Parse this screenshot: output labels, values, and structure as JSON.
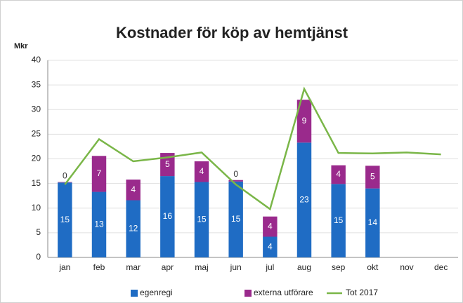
{
  "chart_data": {
    "type": "bar",
    "title": "Kostnader för köp av hemtjänst",
    "y_label": "Mkr",
    "categories": [
      "jan",
      "feb",
      "mar",
      "apr",
      "maj",
      "jun",
      "jul",
      "aug",
      "sep",
      "okt",
      "nov",
      "dec"
    ],
    "series": [
      {
        "name": "egenregi",
        "color": "#1f6cc4",
        "kind": "bar",
        "values": [
          15.2,
          13.3,
          11.6,
          16.5,
          15.3,
          15.4,
          4.2,
          23.3,
          14.9,
          14.0,
          null,
          null
        ],
        "value_labels": [
          "15",
          "13",
          "12",
          "16",
          "15",
          "15",
          "4",
          "23",
          "15",
          "14",
          null,
          null
        ]
      },
      {
        "name": "externa utförare",
        "color": "#9a2a8c",
        "kind": "bar",
        "values": [
          0.1,
          7.3,
          4.2,
          4.7,
          4.2,
          0.3,
          4.1,
          8.7,
          3.8,
          4.6,
          null,
          null
        ],
        "value_labels": [
          "0",
          "7",
          "4",
          "5",
          "4",
          "0",
          "4",
          "9",
          "4",
          "5",
          null,
          null
        ]
      },
      {
        "name": "Tot 2017",
        "color": "#7ab648",
        "kind": "line",
        "values": [
          14.8,
          24.0,
          19.5,
          20.3,
          21.3,
          14.8,
          9.8,
          34.2,
          21.2,
          21.1,
          21.3,
          20.9
        ]
      }
    ],
    "ylim": [
      0,
      40
    ],
    "yticks": [
      0,
      5,
      10,
      15,
      20,
      25,
      30,
      35,
      40
    ],
    "grid": true,
    "legend": "bottom"
  }
}
